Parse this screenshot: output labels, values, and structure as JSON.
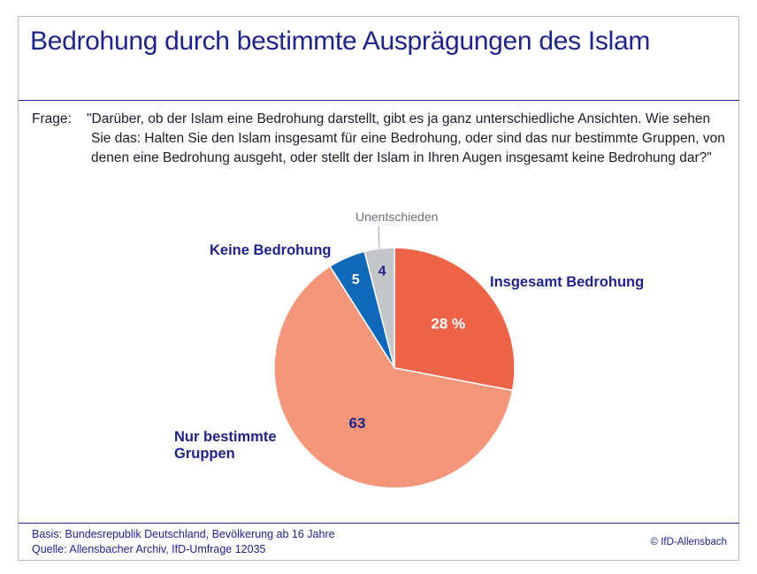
{
  "title": "Bedrohung durch bestimmte Ausprägungen des Islam",
  "question": {
    "label": "Frage:",
    "text": "\"Darüber, ob der Islam eine Bedrohung darstellt, gibt es ja ganz unterschiedliche Ansichten. Wie sehen Sie das: Halten Sie den Islam insgesamt für eine Bedrohung, oder sind das nur bestimmte Gruppen, von denen eine Bedrohung ausgeht, oder stellt der Islam in Ihren Augen insgesamt keine Bedrohung dar?\""
  },
  "chart_data": {
    "type": "pie",
    "unit": "%",
    "slices": [
      {
        "label": "Insgesamt Bedrohung",
        "value": 28,
        "value_label": "28 %",
        "color": "#ee6449"
      },
      {
        "label": "Nur bestimmte Gruppen",
        "value": 63,
        "value_label": "63",
        "color": "#f4967a"
      },
      {
        "label": "Keine Bedrohung",
        "value": 5,
        "value_label": "5",
        "color": "#1069b8"
      },
      {
        "label": "Unentschieden",
        "value": 4,
        "value_label": "4",
        "color": "#c4c6ca"
      }
    ]
  },
  "footer": {
    "basis": "Basis: Bundesrepublik Deutschland, Bevölkerung ab 16 Jahre",
    "source": "Quelle: Allensbacher Archiv, IfD-Umfrage 12035",
    "copyright": "© IfD-Allensbach"
  },
  "colors": {
    "title": "#1f2488",
    "label_dark": "#1f2488",
    "label_grey": "#6a6f7c",
    "value_light": "#ffffff"
  }
}
